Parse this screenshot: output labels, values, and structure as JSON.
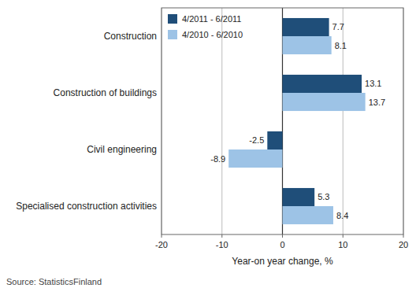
{
  "chart_data": {
    "type": "bar",
    "orientation": "horizontal",
    "categories": [
      "Construction",
      "Construction of buildings",
      "Civil engineering",
      "Specialised construction activities"
    ],
    "series": [
      {
        "name": "4/2011 - 6/2011",
        "color": "#1f4e79",
        "values": [
          7.7,
          13.1,
          -2.5,
          5.3
        ]
      },
      {
        "name": "4/2010 - 6/2010",
        "color": "#9dc3e6",
        "values": [
          8.1,
          13.7,
          -8.9,
          8.4
        ]
      }
    ],
    "xlabel": "Year-on year change, %",
    "xlim": [
      -20,
      20
    ],
    "xticks": [
      -20,
      -10,
      0,
      10,
      20
    ],
    "grid": true,
    "legend": "upper left",
    "data_labels": true,
    "annotations": [
      "Source: StatisticsFinland"
    ]
  }
}
